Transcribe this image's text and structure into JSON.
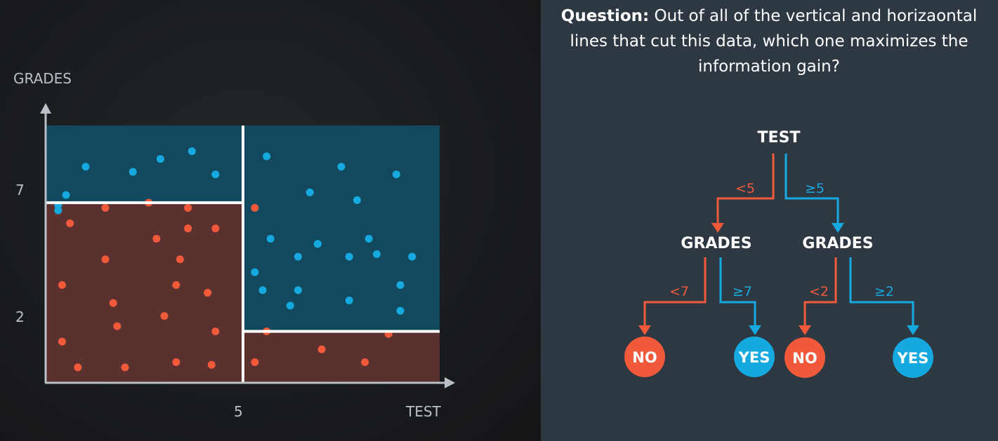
{
  "question": {
    "label": "Question:",
    "text": "Out of all of the vertical and horizaontal lines that cut this data, which one maximizes the information gain?"
  },
  "colors": {
    "red": "#f05a3a",
    "blue": "#16a9e0",
    "red_region": "#5b312f",
    "blue_region": "#12495e",
    "divider": "#ffffff"
  },
  "plot": {
    "y_axis_label": "GRADES",
    "x_axis_label": "TEST",
    "x_tick": "5",
    "y_ticks": [
      "7",
      "2"
    ],
    "x_range": [
      0,
      10
    ],
    "y_range": [
      0,
      10
    ],
    "split_x": 5,
    "split_y_left": 7,
    "split_y_right": 2,
    "blue_points": [
      [
        1,
        8.4
      ],
      [
        2.2,
        8.2
      ],
      [
        2.9,
        8.7
      ],
      [
        3.7,
        9.0
      ],
      [
        4.3,
        8.1
      ],
      [
        0.5,
        7.3
      ],
      [
        0.3,
        6.9
      ],
      [
        0.3,
        6.7
      ],
      [
        5.6,
        8.8
      ],
      [
        7.5,
        8.4
      ],
      [
        8.9,
        8.1
      ],
      [
        6.7,
        7.4
      ],
      [
        7.9,
        7.1
      ],
      [
        5.7,
        5.6
      ],
      [
        6.9,
        5.4
      ],
      [
        8.2,
        5.6
      ],
      [
        6.4,
        4.9
      ],
      [
        7.7,
        4.9
      ],
      [
        8.4,
        5.0
      ],
      [
        9.3,
        4.9
      ],
      [
        5.3,
        4.3
      ],
      [
        5.5,
        3.6
      ],
      [
        6.4,
        3.6
      ],
      [
        6.2,
        3.0
      ],
      [
        7.7,
        3.2
      ],
      [
        9.0,
        3.8
      ],
      [
        9.0,
        2.8
      ]
    ],
    "red_points": [
      [
        5.3,
        6.8
      ],
      [
        1.5,
        6.8
      ],
      [
        2.6,
        7.0
      ],
      [
        3.6,
        6.8
      ],
      [
        0.6,
        6.2
      ],
      [
        2.8,
        5.6
      ],
      [
        3.6,
        6.0
      ],
      [
        4.3,
        6.0
      ],
      [
        1.5,
        4.8
      ],
      [
        3.4,
        4.8
      ],
      [
        0.4,
        3.8
      ],
      [
        3.3,
        3.8
      ],
      [
        4.1,
        3.5
      ],
      [
        1.7,
        3.1
      ],
      [
        3.0,
        2.6
      ],
      [
        1.8,
        2.2
      ],
      [
        4.3,
        2.0
      ],
      [
        0.4,
        1.6
      ],
      [
        0.8,
        0.6
      ],
      [
        2.0,
        0.6
      ],
      [
        3.3,
        0.8
      ],
      [
        4.2,
        0.7
      ],
      [
        5.6,
        2.0
      ],
      [
        7.0,
        1.3
      ],
      [
        8.1,
        0.8
      ],
      [
        8.7,
        1.9
      ],
      [
        5.3,
        0.8
      ]
    ]
  },
  "tree": {
    "root": "TEST",
    "root_left_edge": "<5",
    "root_right_edge": "≥5",
    "left_node": "GRADES",
    "right_node": "GRADES",
    "left_left_edge": "<7",
    "left_right_edge": "≥7",
    "right_left_edge": "<2",
    "right_right_edge": "≥2",
    "leaves": [
      "NO",
      "YES",
      "NO",
      "YES"
    ]
  }
}
